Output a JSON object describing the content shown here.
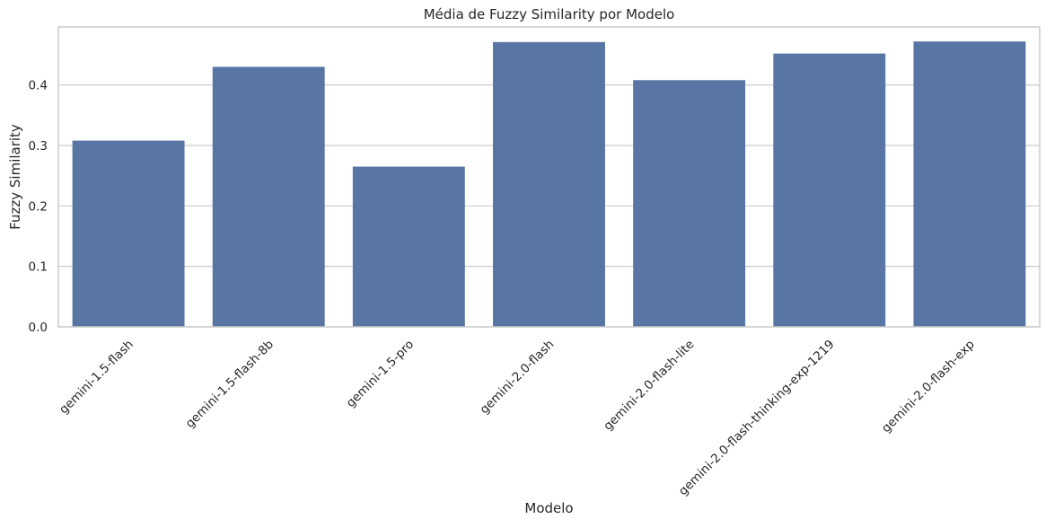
{
  "chart_data": {
    "type": "bar",
    "title": "Média de Fuzzy Similarity por Modelo",
    "xlabel": "Modelo",
    "ylabel": "Fuzzy Similarity",
    "categories": [
      "gemini-1.5-flash",
      "gemini-1.5-flash-8b",
      "gemini-1.5-pro",
      "gemini-2.0-flash",
      "gemini-2.0-flash-lite",
      "gemini-2.0-flash-thinking-exp-1219",
      "gemini-2.0-flash-exp"
    ],
    "values": [
      0.308,
      0.43,
      0.265,
      0.471,
      0.408,
      0.452,
      0.472
    ],
    "yticks": [
      0.0,
      0.1,
      0.2,
      0.3,
      0.4
    ],
    "ytick_labels": [
      "0.0",
      "0.1",
      "0.2",
      "0.3",
      "0.4"
    ],
    "ylim": [
      0,
      0.496
    ],
    "grid": "horizontal",
    "bar_color": "#5975a4",
    "grid_color": "#cccccc",
    "frame_color": "#cccccc"
  }
}
